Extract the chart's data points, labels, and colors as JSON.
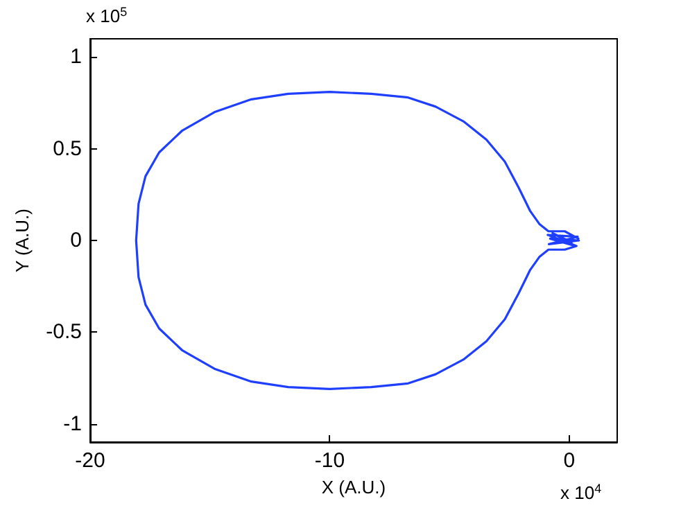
{
  "chart_data": {
    "type": "line",
    "xlabel": "X (A.U.)",
    "ylabel": "Y (A.U.)",
    "annotations": [
      "x 10$^{5}$",
      "x 10$^{4}$"
    ],
    "xlim": [
      -20,
      2
    ],
    "xticks": [
      -20,
      -10,
      0
    ],
    "ylim": [
      -1.1,
      1.1
    ],
    "yticks": [
      -1,
      -0.5,
      0,
      0.5,
      1
    ],
    "grid": false,
    "marker": "none",
    "line_style": "solid",
    "series": [
      {
        "color": "#1f3fff",
        "x": [
          0.38,
          -0.19,
          -0.87,
          -1.25,
          -1.63,
          -2.12,
          -2.69,
          -3.46,
          -4.42,
          -5.58,
          -6.73,
          -8.27,
          -10,
          -11.73,
          -13.27,
          -14.81,
          -16.15,
          -17.12,
          -17.69,
          -17.98,
          -18.08,
          -17.98,
          -17.69,
          -17.12,
          -16.15,
          -14.81,
          -13.27,
          -11.73,
          -10,
          -8.27,
          -6.73,
          -5.58,
          -4.42,
          -3.46,
          -2.69,
          -2.12,
          -1.63,
          -1.25,
          -0.87,
          -0.19,
          0.3,
          -0.9,
          0.35,
          -0.85,
          0.4,
          -0.8,
          0.25,
          -0.7,
          0.1
        ],
        "values": [
          0.01,
          0.05,
          0.05,
          0.09,
          0.16,
          0.29,
          0.43,
          0.55,
          0.65,
          0.73,
          0.78,
          0.8,
          0.81,
          0.8,
          0.77,
          0.7,
          0.6,
          0.48,
          0.35,
          0.2,
          0,
          -0.2,
          -0.35,
          -0.48,
          -0.6,
          -0.7,
          -0.77,
          -0.8,
          -0.81,
          -0.8,
          -0.78,
          -0.73,
          -0.65,
          -0.55,
          -0.43,
          -0.29,
          -0.16,
          -0.09,
          -0.05,
          -0.05,
          -0.03,
          0.03,
          0.02,
          -0.02,
          0,
          0.01,
          -0.03,
          0.04,
          -0.01
        ]
      }
    ]
  }
}
